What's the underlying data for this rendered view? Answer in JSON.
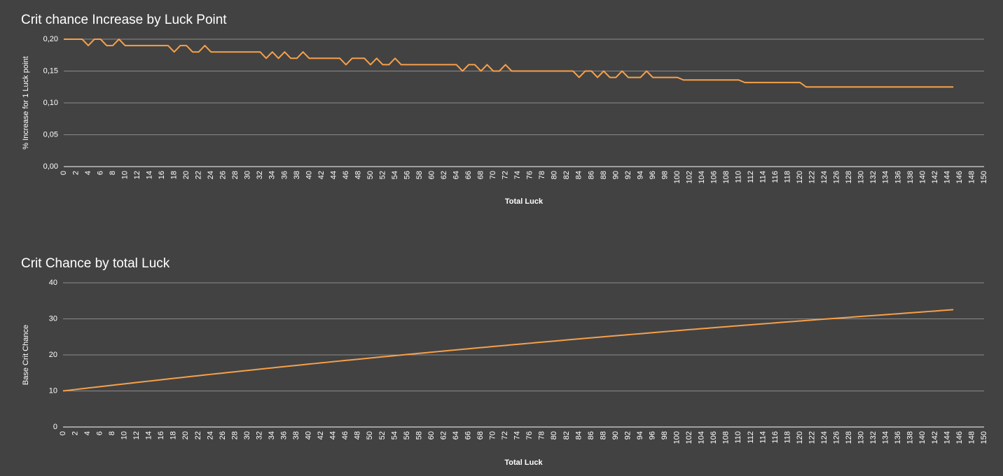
{
  "chart_data": [
    {
      "type": "line",
      "title": "Crit chance Increase by Luck Point",
      "x_label": "Total Luck",
      "y_label": "% Increase for 1 Luck point",
      "color": "#f6a04a",
      "grid": true,
      "x": [
        0,
        1,
        2,
        3,
        4,
        5,
        6,
        7,
        8,
        9,
        10,
        11,
        12,
        13,
        14,
        15,
        16,
        17,
        18,
        19,
        20,
        21,
        22,
        23,
        24,
        25,
        26,
        27,
        28,
        29,
        30,
        31,
        32,
        33,
        34,
        35,
        36,
        37,
        38,
        39,
        40,
        41,
        42,
        43,
        44,
        45,
        46,
        47,
        48,
        49,
        50,
        51,
        52,
        53,
        54,
        55,
        56,
        57,
        58,
        59,
        60,
        61,
        62,
        63,
        64,
        65,
        66,
        67,
        68,
        69,
        70,
        71,
        72,
        73,
        74,
        75,
        76,
        77,
        78,
        79,
        80,
        81,
        82,
        83,
        84,
        85,
        86,
        87,
        88,
        89,
        90,
        91,
        92,
        93,
        94,
        95,
        96,
        97,
        98,
        99,
        100,
        101,
        102,
        103,
        104,
        105,
        106,
        107,
        108,
        109,
        110,
        111,
        112,
        113,
        114,
        115,
        116,
        117,
        118,
        119,
        120,
        121,
        122,
        123,
        124,
        125,
        126,
        127,
        128,
        129,
        130,
        131,
        132,
        133,
        134,
        135,
        136,
        137,
        138,
        139,
        140,
        141,
        142,
        143,
        144,
        145
      ],
      "values": [
        0.2,
        0.2,
        0.2,
        0.2,
        0.19,
        0.2,
        0.2,
        0.19,
        0.19,
        0.2,
        0.19,
        0.19,
        0.19,
        0.19,
        0.19,
        0.19,
        0.19,
        0.19,
        0.18,
        0.19,
        0.19,
        0.18,
        0.18,
        0.19,
        0.18,
        0.18,
        0.18,
        0.18,
        0.18,
        0.18,
        0.18,
        0.18,
        0.18,
        0.17,
        0.18,
        0.17,
        0.18,
        0.17,
        0.17,
        0.18,
        0.17,
        0.17,
        0.17,
        0.17,
        0.17,
        0.17,
        0.16,
        0.17,
        0.17,
        0.17,
        0.16,
        0.17,
        0.16,
        0.16,
        0.17,
        0.16,
        0.16,
        0.16,
        0.16,
        0.16,
        0.16,
        0.16,
        0.16,
        0.16,
        0.16,
        0.15,
        0.16,
        0.16,
        0.15,
        0.16,
        0.15,
        0.15,
        0.16,
        0.15,
        0.15,
        0.15,
        0.15,
        0.15,
        0.15,
        0.15,
        0.15,
        0.15,
        0.15,
        0.15,
        0.14,
        0.15,
        0.15,
        0.14,
        0.15,
        0.14,
        0.14,
        0.15,
        0.14,
        0.14,
        0.14,
        0.15,
        0.14,
        0.14,
        0.14,
        0.14,
        0.14,
        0.136,
        0.136,
        0.136,
        0.136,
        0.136,
        0.136,
        0.136,
        0.136,
        0.136,
        0.136,
        0.132,
        0.132,
        0.132,
        0.132,
        0.132,
        0.132,
        0.132,
        0.132,
        0.132,
        0.132,
        0.125,
        0.125,
        0.125,
        0.125,
        0.125,
        0.125,
        0.125,
        0.125,
        0.125,
        0.125,
        0.125,
        0.125,
        0.125,
        0.125,
        0.125,
        0.125,
        0.125,
        0.125,
        0.125,
        0.125,
        0.125,
        0.125,
        0.125,
        0.125,
        0.125
      ],
      "xlim": [
        0,
        150
      ],
      "xticks": [
        0,
        2,
        4,
        6,
        8,
        10,
        12,
        14,
        16,
        18,
        20,
        22,
        24,
        26,
        28,
        30,
        32,
        34,
        36,
        38,
        40,
        42,
        44,
        46,
        48,
        50,
        52,
        54,
        56,
        58,
        60,
        62,
        64,
        66,
        68,
        70,
        72,
        74,
        76,
        78,
        80,
        82,
        84,
        86,
        88,
        90,
        92,
        94,
        96,
        98,
        100,
        102,
        104,
        106,
        108,
        110,
        112,
        114,
        116,
        118,
        120,
        122,
        124,
        126,
        128,
        130,
        132,
        134,
        136,
        138,
        140,
        142,
        144,
        146,
        148,
        150
      ],
      "ylim": [
        0,
        0.2
      ],
      "yticks": [
        {
          "value": 0,
          "label": "0,00"
        },
        {
          "value": 0.05,
          "label": "0,05"
        },
        {
          "value": 0.1,
          "label": "0,10"
        },
        {
          "value": 0.15,
          "label": "0,15"
        },
        {
          "value": 0.2,
          "label": "0,20"
        }
      ]
    },
    {
      "type": "line",
      "title": "Crit Chance by total Luck",
      "x_label": "Total Luck",
      "y_label": "Base Crit Chance",
      "color": "#f6a04a",
      "grid": true,
      "x": [
        0,
        1,
        2,
        3,
        4,
        5,
        6,
        7,
        8,
        9,
        10,
        11,
        12,
        13,
        14,
        15,
        16,
        17,
        18,
        19,
        20,
        21,
        22,
        23,
        24,
        25,
        26,
        27,
        28,
        29,
        30,
        31,
        32,
        33,
        34,
        35,
        36,
        37,
        38,
        39,
        40,
        41,
        42,
        43,
        44,
        45,
        46,
        47,
        48,
        49,
        50,
        51,
        52,
        53,
        54,
        55,
        56,
        57,
        58,
        59,
        60,
        61,
        62,
        63,
        64,
        65,
        66,
        67,
        68,
        69,
        70,
        71,
        72,
        73,
        74,
        75,
        76,
        77,
        78,
        79,
        80,
        81,
        82,
        83,
        84,
        85,
        86,
        87,
        88,
        89,
        90,
        91,
        92,
        93,
        94,
        95,
        96,
        97,
        98,
        99,
        100,
        101,
        102,
        103,
        104,
        105,
        106,
        107,
        108,
        109,
        110,
        111,
        112,
        113,
        114,
        115,
        116,
        117,
        118,
        119,
        120,
        121,
        122,
        123,
        124,
        125,
        126,
        127,
        128,
        129,
        130,
        131,
        132,
        133,
        134,
        135,
        136,
        137,
        138,
        139,
        140,
        141,
        142,
        143,
        144,
        145
      ],
      "values": [
        10,
        10.2,
        10.4,
        10.6,
        10.8,
        10.99,
        11.19,
        11.39,
        11.58,
        11.77,
        11.97,
        12.16,
        12.35,
        12.54,
        12.73,
        12.92,
        13.11,
        13.3,
        13.49,
        13.67,
        13.86,
        14.05,
        14.23,
        14.41,
        14.6,
        14.78,
        14.96,
        15.14,
        15.32,
        15.5,
        15.68,
        15.86,
        16.04,
        16.22,
        16.39,
        16.57,
        16.74,
        16.92,
        17.09,
        17.26,
        17.44,
        17.61,
        17.78,
        17.95,
        18.12,
        18.29,
        18.46,
        18.62,
        18.79,
        18.96,
        19.13,
        19.29,
        19.46,
        19.62,
        19.78,
        19.95,
        20.11,
        20.27,
        20.43,
        20.59,
        20.75,
        20.91,
        21.07,
        21.23,
        21.39,
        21.55,
        21.7,
        21.86,
        22.02,
        22.17,
        22.33,
        22.48,
        22.63,
        22.79,
        22.94,
        23.09,
        23.24,
        23.39,
        23.54,
        23.69,
        23.84,
        23.99,
        24.14,
        24.29,
        24.44,
        24.58,
        24.73,
        24.88,
        25.02,
        25.17,
        25.31,
        25.45,
        25.6,
        25.74,
        25.88,
        26.02,
        26.17,
        26.31,
        26.45,
        26.59,
        26.73,
        26.87,
        27.01,
        27.14,
        27.28,
        27.41,
        27.55,
        27.69,
        27.82,
        27.96,
        28.09,
        28.23,
        28.36,
        28.49,
        28.62,
        28.75,
        28.89,
        29.02,
        29.15,
        29.28,
        29.41,
        29.55,
        29.67,
        29.8,
        29.92,
        30.05,
        30.17,
        30.3,
        30.42,
        30.55,
        30.67,
        30.8,
        30.92,
        31.05,
        31.17,
        31.3,
        31.42,
        31.55,
        31.67,
        31.8,
        31.92,
        32.05,
        32.17,
        32.3,
        32.42,
        32.55
      ],
      "xlim": [
        0,
        150
      ],
      "xticks": [
        0,
        2,
        4,
        6,
        8,
        10,
        12,
        14,
        16,
        18,
        20,
        22,
        24,
        26,
        28,
        30,
        32,
        34,
        36,
        38,
        40,
        42,
        44,
        46,
        48,
        50,
        52,
        54,
        56,
        58,
        60,
        62,
        64,
        66,
        68,
        70,
        72,
        74,
        76,
        78,
        80,
        82,
        84,
        86,
        88,
        90,
        92,
        94,
        96,
        98,
        100,
        102,
        104,
        106,
        108,
        110,
        112,
        114,
        116,
        118,
        120,
        122,
        124,
        126,
        128,
        130,
        132,
        134,
        136,
        138,
        140,
        142,
        144,
        146,
        148,
        150
      ],
      "ylim": [
        0,
        40
      ],
      "yticks": [
        0,
        10,
        20,
        30,
        40
      ]
    }
  ]
}
